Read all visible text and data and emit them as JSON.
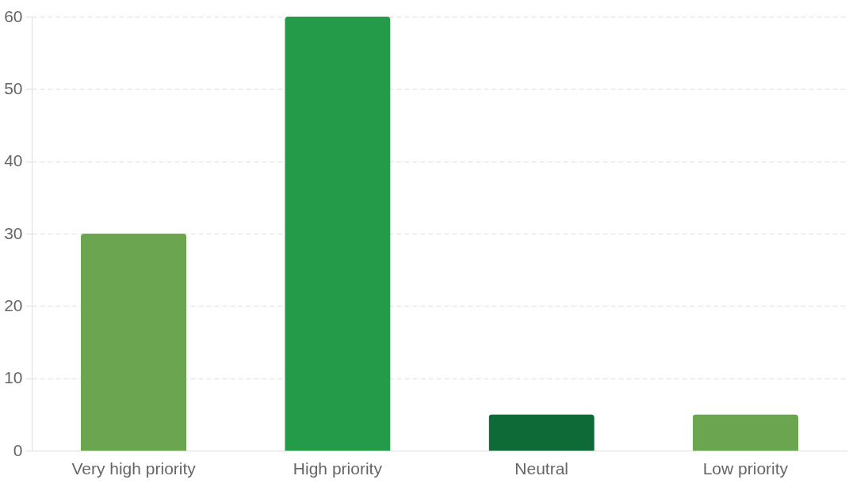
{
  "chart_data": {
    "type": "bar",
    "categories": [
      "Very high priority",
      "High priority",
      "Neutral",
      "Low priority"
    ],
    "values": [
      30,
      60,
      5,
      5
    ],
    "colors": [
      "#6ca550",
      "#239b48",
      "#0e6b37",
      "#6ca550"
    ],
    "ylim": [
      0,
      60
    ],
    "yticks": [
      0,
      10,
      20,
      30,
      40,
      50,
      60
    ],
    "grid": true
  }
}
